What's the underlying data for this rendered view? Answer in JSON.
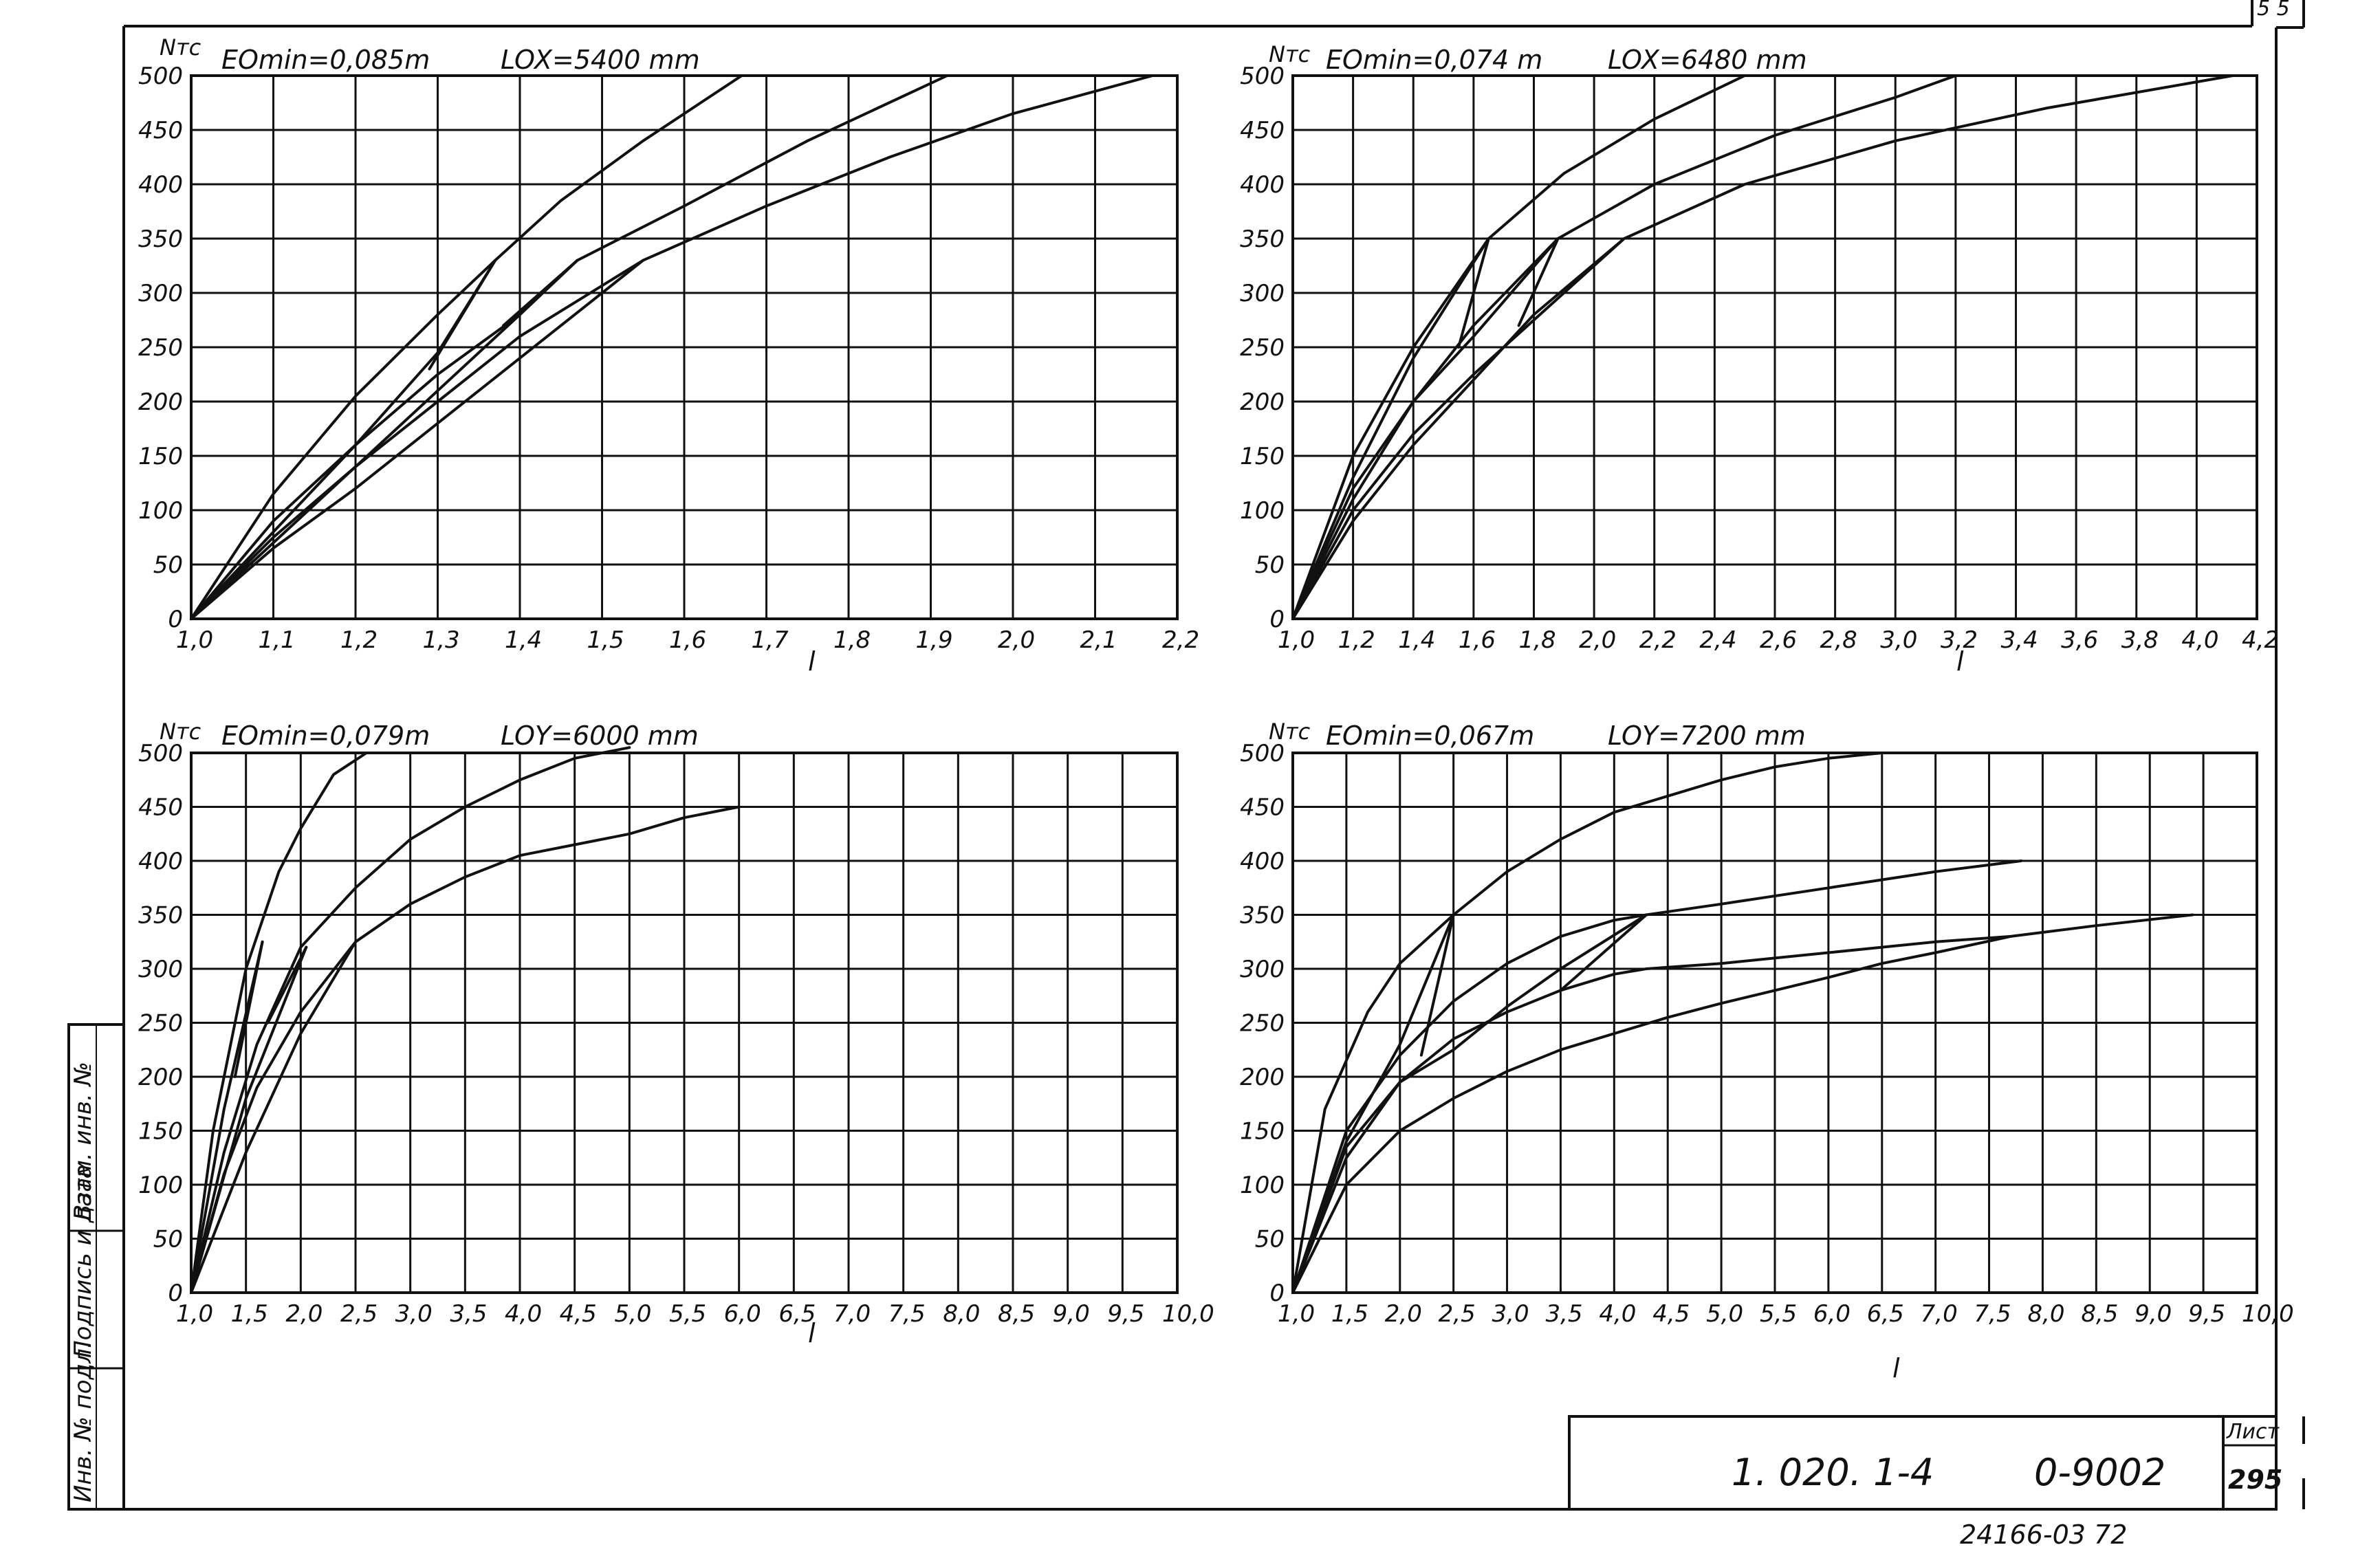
{
  "sheet": {
    "side_stamp": {
      "inv_no": "Инв. № подл.",
      "sign_date": "Подпись и дата",
      "replace_inv": "Взам. инв. №"
    },
    "title_block": {
      "code": "1. 020. 1-4",
      "variant": "0-9002",
      "sheet_label": "Лист",
      "sheet_no": "295"
    },
    "footer_stamp": "24166-03 72",
    "corner_mark": "5 5"
  },
  "chart_data": [
    {
      "type": "line",
      "ylabel": "Nтс",
      "xlabel": "l",
      "emin_label": "EOmin=0,085m",
      "length_label": "LOX=5400 mm",
      "x_ticks": [
        "1,0",
        "1,1",
        "1,2",
        "1,3",
        "1,4",
        "1,5",
        "1,6",
        "1,7",
        "1,8",
        "1,9",
        "2,0",
        "2,1",
        "2,2"
      ],
      "y_ticks": [
        "0",
        "50",
        "100",
        "150",
        "200",
        "250",
        "300",
        "350",
        "400",
        "450",
        "500"
      ],
      "xlim": [
        1.0,
        2.2
      ],
      "ylim": [
        0,
        500
      ],
      "grid": true,
      "series": [
        {
          "x": [
            1.0,
            1.1,
            1.2,
            1.3,
            1.37,
            1.45,
            1.55,
            1.67
          ],
          "y": [
            0,
            115,
            205,
            280,
            330,
            385,
            440,
            500
          ]
        },
        {
          "x": [
            1.0,
            1.1,
            1.2,
            1.3,
            1.4,
            1.47,
            1.6,
            1.75,
            1.92
          ],
          "y": [
            0,
            90,
            160,
            225,
            280,
            330,
            380,
            440,
            500
          ]
        },
        {
          "x": [
            1.0,
            1.1,
            1.2,
            1.3,
            1.4,
            1.55,
            1.7,
            1.85,
            2.0,
            2.17
          ],
          "y": [
            0,
            75,
            140,
            200,
            260,
            330,
            380,
            425,
            465,
            500
          ]
        },
        {
          "x": [
            1.0,
            1.1,
            1.2,
            1.3,
            1.4,
            1.55
          ],
          "y": [
            0,
            65,
            120,
            180,
            240,
            330
          ]
        },
        {
          "x": [
            1.0,
            1.1,
            1.2,
            1.3,
            1.4,
            1.47
          ],
          "y": [
            0,
            70,
            140,
            210,
            280,
            330
          ]
        },
        {
          "x": [
            1.0,
            1.1,
            1.2,
            1.3,
            1.37
          ],
          "y": [
            0,
            80,
            160,
            245,
            330
          ]
        },
        {
          "x": [
            1.29,
            1.37
          ],
          "y": [
            230,
            330
          ]
        },
        {
          "x": [
            1.38,
            1.47
          ],
          "y": [
            270,
            330
          ]
        }
      ]
    },
    {
      "type": "line",
      "ylabel": "Nтс",
      "xlabel": "l",
      "emin_label": "EOmin=0,074 m",
      "length_label": "LOX=6480 mm",
      "x_ticks": [
        "1,0",
        "1,2",
        "1,4",
        "1,6",
        "1,8",
        "2,0",
        "2,2",
        "2,4",
        "2,6",
        "2,8",
        "3,0",
        "3,2",
        "3,4",
        "3,6",
        "3,8",
        "4,0",
        "4,2"
      ],
      "y_ticks": [
        "0",
        "50",
        "100",
        "150",
        "200",
        "250",
        "300",
        "350",
        "400",
        "450",
        "500"
      ],
      "xlim": [
        1.0,
        4.2
      ],
      "ylim": [
        0,
        500
      ],
      "grid": true,
      "series": [
        {
          "x": [
            1.0,
            1.2,
            1.4,
            1.6,
            1.65,
            1.9,
            2.2,
            2.5
          ],
          "y": [
            0,
            150,
            250,
            330,
            350,
            410,
            460,
            500
          ]
        },
        {
          "x": [
            1.0,
            1.2,
            1.4,
            1.6,
            1.88,
            2.2,
            2.6,
            3.0,
            3.2
          ],
          "y": [
            0,
            120,
            200,
            260,
            350,
            400,
            445,
            480,
            500
          ]
        },
        {
          "x": [
            1.0,
            1.2,
            1.4,
            1.6,
            1.8,
            2.1,
            2.5,
            3.0,
            3.5,
            4.12
          ],
          "y": [
            0,
            100,
            170,
            225,
            275,
            350,
            400,
            440,
            470,
            500
          ]
        },
        {
          "x": [
            1.0,
            1.2,
            1.4,
            1.6,
            1.8,
            2.1
          ],
          "y": [
            0,
            90,
            160,
            220,
            280,
            350
          ]
        },
        {
          "x": [
            1.0,
            1.2,
            1.4,
            1.6,
            1.88
          ],
          "y": [
            0,
            110,
            200,
            270,
            350
          ]
        },
        {
          "x": [
            1.0,
            1.2,
            1.4,
            1.65
          ],
          "y": [
            0,
            130,
            240,
            350
          ]
        },
        {
          "x": [
            1.55,
            1.65
          ],
          "y": [
            250,
            350
          ]
        },
        {
          "x": [
            1.75,
            1.88
          ],
          "y": [
            270,
            350
          ]
        }
      ]
    },
    {
      "type": "line",
      "ylabel": "Nтс",
      "xlabel": "l",
      "emin_label": "EOmin=0,079m",
      "length_label": "LOY=6000 mm",
      "x_ticks": [
        "1,0",
        "1,5",
        "2,0",
        "2,5",
        "3,0",
        "3,5",
        "4,0",
        "4,5",
        "5,0",
        "5,5",
        "6,0",
        "6,5",
        "7,0",
        "7,5",
        "8,0",
        "8,5",
        "9,0",
        "9,5",
        "10,0"
      ],
      "y_ticks": [
        "0",
        "50",
        "100",
        "150",
        "200",
        "250",
        "300",
        "350",
        "400",
        "450",
        "500"
      ],
      "xlim": [
        1.0,
        10.0
      ],
      "ylim": [
        0,
        500
      ],
      "grid": true,
      "series": [
        {
          "x": [
            1.0,
            1.2,
            1.5,
            1.8,
            2.0,
            2.3,
            2.6
          ],
          "y": [
            0,
            150,
            300,
            390,
            430,
            480,
            500
          ]
        },
        {
          "x": [
            1.0,
            1.3,
            1.6,
            2.0,
            2.5,
            3.0,
            3.5,
            4.0,
            4.5,
            5.0
          ],
          "y": [
            0,
            130,
            230,
            320,
            375,
            420,
            450,
            475,
            495,
            505
          ]
        },
        {
          "x": [
            1.0,
            1.3,
            1.6,
            2.0,
            2.5,
            3.0,
            3.5,
            4.0,
            4.5,
            5.0,
            5.5,
            6.0
          ],
          "y": [
            0,
            110,
            190,
            260,
            325,
            360,
            385,
            405,
            415,
            425,
            440,
            450
          ]
        },
        {
          "x": [
            1.0,
            1.5,
            2.0,
            2.5
          ],
          "y": [
            0,
            130,
            240,
            325
          ]
        },
        {
          "x": [
            1.0,
            1.5,
            2.05
          ],
          "y": [
            0,
            180,
            320
          ]
        },
        {
          "x": [
            1.0,
            1.3,
            1.65
          ],
          "y": [
            0,
            170,
            325
          ]
        },
        {
          "x": [
            1.4,
            1.65
          ],
          "y": [
            200,
            325
          ]
        },
        {
          "x": [
            1.7,
            2.05
          ],
          "y": [
            250,
            320
          ]
        }
      ]
    },
    {
      "type": "line",
      "ylabel": "Nтс",
      "xlabel": "l",
      "emin_label": "EOmin=0,067m",
      "length_label": "LOY=7200 mm",
      "x_ticks": [
        "1,0",
        "1,5",
        "2,0",
        "2,5",
        "3,0",
        "3,5",
        "4,0",
        "4,5",
        "5,0",
        "5,5",
        "6,0",
        "6,5",
        "7,0",
        "7,5",
        "8,0",
        "8,5",
        "9,0",
        "9,5",
        "10,0"
      ],
      "y_ticks": [
        "0",
        "50",
        "100",
        "150",
        "200",
        "250",
        "300",
        "350",
        "400",
        "450",
        "500"
      ],
      "xlim": [
        1.0,
        10.0
      ],
      "ylim": [
        0,
        500
      ],
      "grid": true,
      "series": [
        {
          "x": [
            1.0,
            1.3,
            1.7,
            2.0,
            2.5,
            3.0,
            3.5,
            4.0,
            4.5,
            5.0,
            5.5,
            6.0,
            6.5
          ],
          "y": [
            0,
            170,
            260,
            305,
            350,
            390,
            420,
            445,
            460,
            475,
            487,
            495,
            500
          ]
        },
        {
          "x": [
            1.0,
            1.5,
            2.0,
            2.5,
            3.0,
            3.5,
            4.0,
            4.3,
            5.0,
            6.0,
            7.0,
            7.8
          ],
          "y": [
            0,
            150,
            220,
            270,
            305,
            330,
            345,
            350,
            360,
            375,
            390,
            400
          ]
        },
        {
          "x": [
            1.0,
            1.5,
            2.0,
            2.5,
            3.0,
            3.5,
            4.0,
            4.3,
            5.0,
            6.0,
            7.0,
            7.7,
            8.5,
            9.4
          ],
          "y": [
            0,
            125,
            195,
            235,
            260,
            280,
            295,
            300,
            305,
            315,
            325,
            330,
            340,
            350
          ]
        },
        {
          "x": [
            1.0,
            1.5,
            2.0,
            2.5,
            3.0,
            3.5,
            4.0,
            4.5,
            5.0,
            5.5,
            6.0,
            6.5,
            7.0,
            7.7
          ],
          "y": [
            0,
            100,
            150,
            180,
            205,
            225,
            240,
            255,
            268,
            280,
            292,
            305,
            315,
            330
          ]
        },
        {
          "x": [
            1.0,
            1.5,
            2.0,
            2.5,
            3.0,
            3.5,
            4.3
          ],
          "y": [
            0,
            135,
            195,
            225,
            265,
            300,
            350
          ]
        },
        {
          "x": [
            1.0,
            1.5,
            2.0,
            2.5
          ],
          "y": [
            0,
            140,
            230,
            350
          ]
        },
        {
          "x": [
            2.2,
            2.5
          ],
          "y": [
            220,
            350
          ]
        },
        {
          "x": [
            3.5,
            4.3
          ],
          "y": [
            280,
            350
          ]
        }
      ]
    }
  ]
}
